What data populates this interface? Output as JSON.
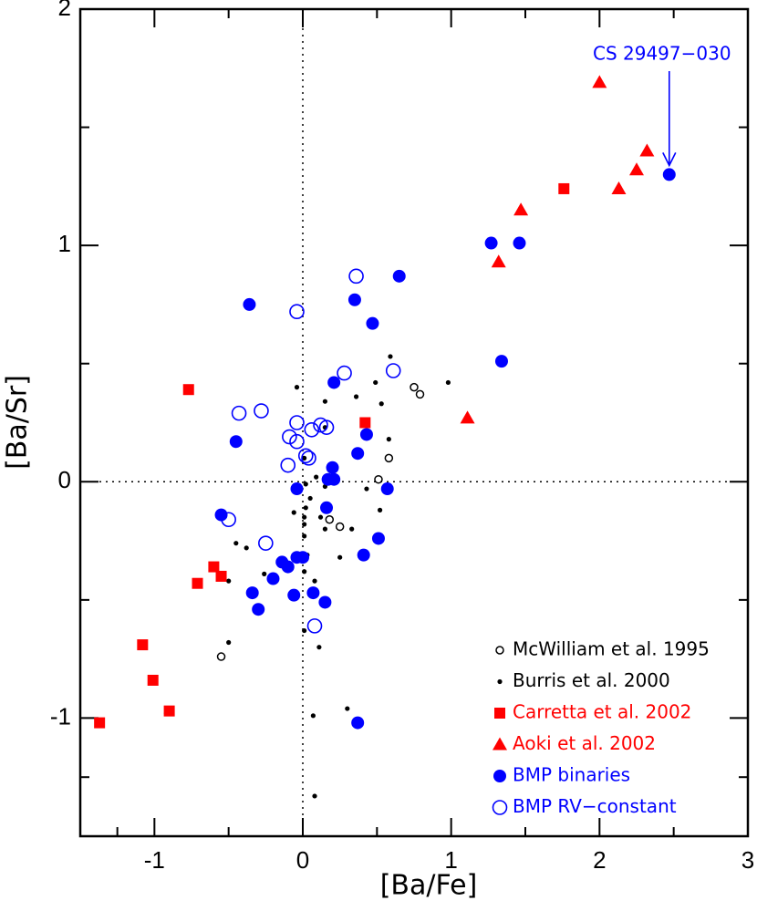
{
  "chart_data": {
    "type": "scatter",
    "x_label": "[Ba/Fe]",
    "y_label": "[Ba/Sr]",
    "xlim": [
      -1.5,
      3
    ],
    "ylim": [
      -1.5,
      2
    ],
    "xticks": [
      -1,
      0,
      1,
      2,
      3
    ],
    "yticks": [
      -1,
      0,
      1,
      2
    ],
    "reference_lines": {
      "x": 0,
      "y": 0
    },
    "legend_position": "lower right",
    "annotation": "CS 29497−030",
    "series": [
      {
        "name": "McWilliam et al. 1995",
        "color": "#000000",
        "marker": "open-small",
        "x": [
          -0.55,
          0.51,
          0.58,
          0.75,
          0.79,
          0.18,
          0.25
        ],
        "y": [
          -0.74,
          0.01,
          0.1,
          0.4,
          0.37,
          -0.16,
          -0.19
        ]
      },
      {
        "name": "Burris et al. 2000",
        "color": "#000000",
        "marker": "dot",
        "x": [
          -0.92,
          -0.5,
          -0.5,
          -0.45,
          -0.38,
          -0.26,
          -0.04,
          0.02,
          0.01,
          0.01,
          0.01,
          0.03,
          0.01,
          0.01,
          0.07,
          0.08,
          0.08,
          0.11,
          0.12,
          0.15,
          0.15,
          0.15,
          0.15,
          0.25,
          0.3,
          0.33,
          0.36,
          0.42,
          0.43,
          0.49,
          0.53,
          0.52,
          0.58,
          0.59,
          0.98,
          0.01,
          0.02,
          0.05,
          -0.06,
          0.09
        ],
        "y": [
          -0.98,
          -0.68,
          -0.42,
          -0.26,
          -0.28,
          -0.39,
          0.4,
          -0.11,
          -0.15,
          -0.18,
          -0.23,
          -0.31,
          -0.38,
          -0.63,
          -0.99,
          -1.33,
          -0.42,
          -0.7,
          -0.15,
          0.34,
          0.23,
          -0.02,
          -0.2,
          -0.32,
          -0.96,
          -0.2,
          0.36,
          0.25,
          -0.03,
          0.42,
          0.33,
          -0.12,
          0.18,
          0.53,
          0.42,
          0.1,
          -0.01,
          -0.07,
          -0.13,
          0.02
        ]
      },
      {
        "name": "Carretta et al. 2002",
        "color": "#ff0000",
        "marker": "square",
        "x": [
          -1.37,
          -0.9,
          -1.01,
          -1.08,
          -0.71,
          -0.55,
          -0.6,
          -0.77,
          0.42,
          1.76
        ],
        "y": [
          -1.02,
          -0.97,
          -0.84,
          -0.69,
          -0.43,
          -0.4,
          -0.36,
          0.39,
          0.25,
          1.24
        ]
      },
      {
        "name": "Aoki et al. 2002",
        "color": "#ff0000",
        "marker": "triangle",
        "x": [
          2.0,
          2.32,
          2.25,
          2.13,
          1.47,
          1.32,
          1.11
        ],
        "y": [
          1.69,
          1.4,
          1.32,
          1.24,
          1.15,
          0.93,
          0.27
        ]
      },
      {
        "name": "BMP binaries",
        "color": "#0000ff",
        "marker": "circle",
        "x": [
          2.47,
          1.27,
          1.46,
          0.65,
          0.35,
          -0.36,
          0.47,
          1.34,
          0.21,
          -0.45,
          0.43,
          0.37,
          0.2,
          0.21,
          0.17,
          0.57,
          -0.04,
          0.16,
          -0.55,
          0.51,
          0.41,
          -0.04,
          0.0,
          -0.14,
          -0.1,
          -0.2,
          -0.34,
          0.07,
          -0.06,
          0.15,
          -0.3,
          0.37
        ],
        "y": [
          1.3,
          1.01,
          1.01,
          0.87,
          0.77,
          0.75,
          0.67,
          0.51,
          0.42,
          0.17,
          0.2,
          0.12,
          0.06,
          0.01,
          0.01,
          -0.03,
          -0.03,
          -0.11,
          -0.14,
          -0.24,
          -0.31,
          -0.32,
          -0.32,
          -0.34,
          -0.36,
          -0.41,
          -0.47,
          -0.47,
          -0.48,
          -0.51,
          -0.54,
          -1.02
        ]
      },
      {
        "name": "BMP RV−constant",
        "color": "#0000ff",
        "marker": "open-circle",
        "x": [
          0.36,
          -0.04,
          0.28,
          0.61,
          -0.43,
          -0.28,
          -0.04,
          0.12,
          0.16,
          0.06,
          -0.09,
          -0.04,
          0.02,
          0.04,
          -0.1,
          -0.5,
          -0.25,
          0.08
        ],
        "y": [
          0.87,
          0.72,
          0.46,
          0.47,
          0.29,
          0.3,
          0.25,
          0.24,
          0.23,
          0.22,
          0.19,
          0.17,
          0.11,
          0.1,
          0.07,
          -0.16,
          -0.26,
          -0.61
        ]
      }
    ]
  }
}
